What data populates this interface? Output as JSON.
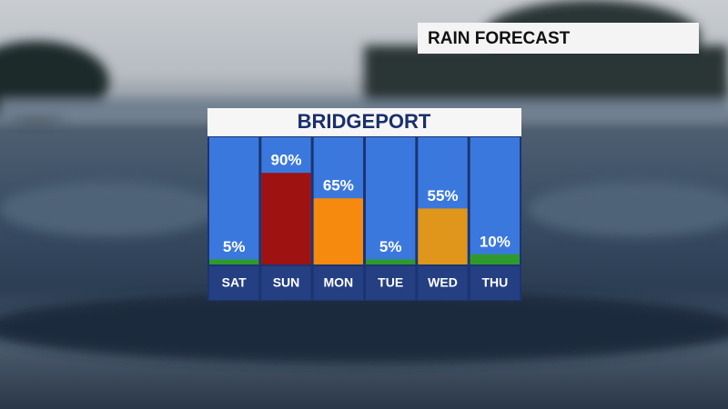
{
  "header": {
    "title": "RAIN FORECAST"
  },
  "chart_data": {
    "type": "bar",
    "title": "BRIDGEPORT",
    "categories": [
      "SAT",
      "SUN",
      "MON",
      "TUE",
      "WED",
      "THU"
    ],
    "values": [
      5,
      90,
      65,
      5,
      55,
      10
    ],
    "value_labels": [
      "5%",
      "90%",
      "65%",
      "5%",
      "55%",
      "10%"
    ],
    "colors": [
      "#2f9a2c",
      "#9e1212",
      "#f68a0e",
      "#2f9a2c",
      "#e0961a",
      "#2f9a2c"
    ],
    "ylim": [
      0,
      100
    ]
  }
}
